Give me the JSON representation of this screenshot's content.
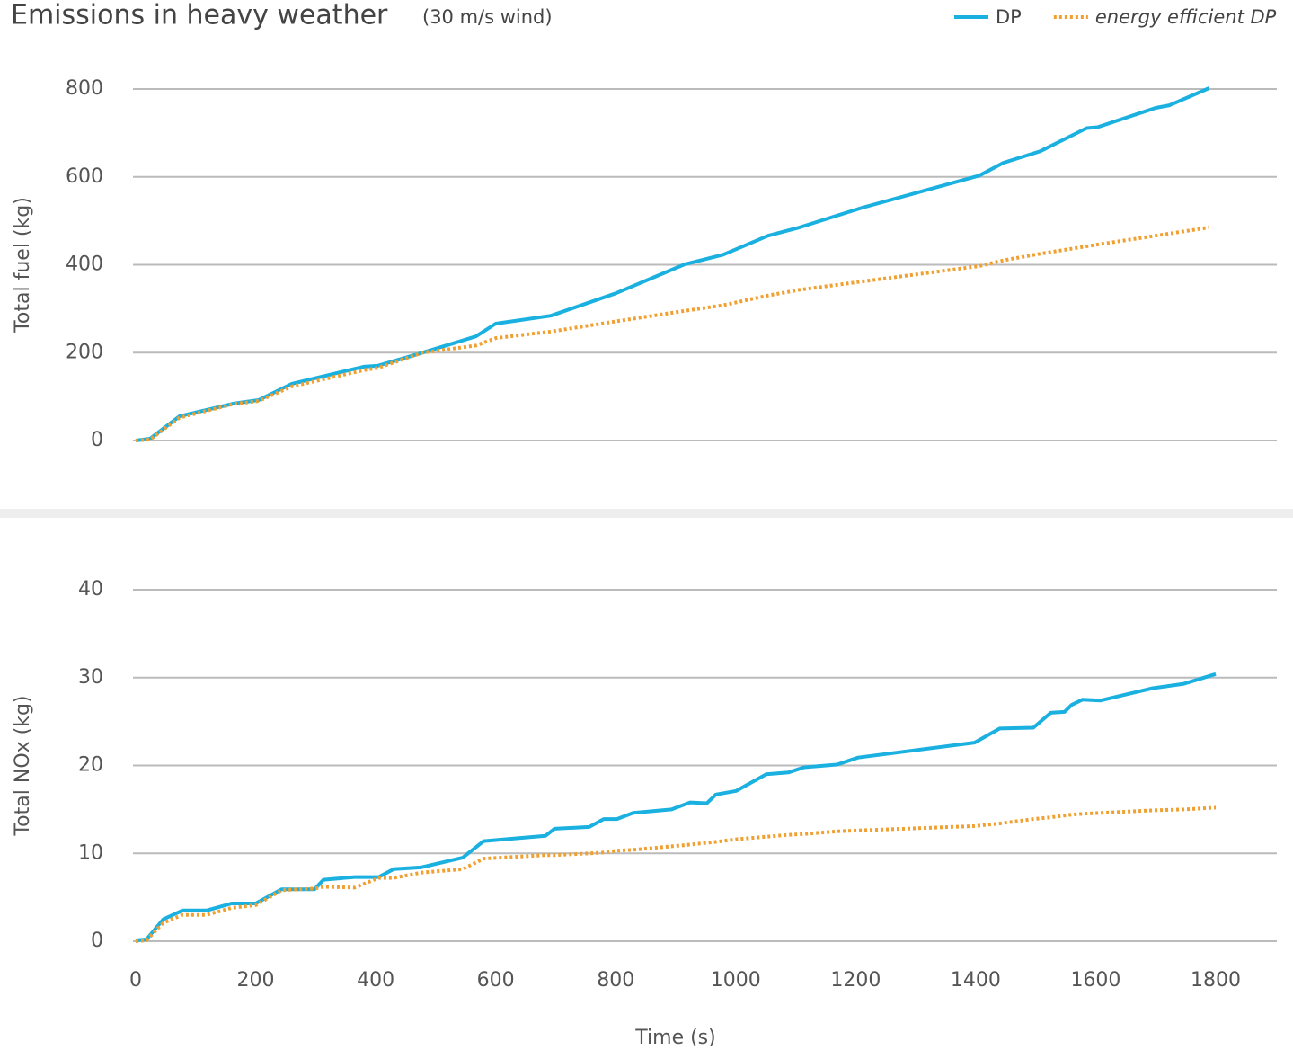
{
  "chart_data": [
    {
      "type": "line",
      "title": "Emissions in heavy weather",
      "subtitle": "(30 m/s wind)",
      "ylabel": "Total fuel  (kg)",
      "x": [
        0,
        24,
        73,
        163,
        205,
        260,
        380,
        403,
        478,
        567,
        600,
        692,
        800,
        915,
        979,
        1054,
        1106,
        1211,
        1406,
        1446,
        1507,
        1585,
        1603,
        1700,
        1723,
        1789
      ],
      "series": [
        {
          "name": "DP",
          "color": "#1ab0e0",
          "style": "solid",
          "values": [
            0,
            4,
            55,
            84,
            92,
            129,
            168,
            170,
            200,
            237,
            266,
            284,
            335,
            401,
            423,
            466,
            485,
            530,
            603,
            632,
            658,
            711,
            713,
            757,
            763,
            802
          ]
        },
        {
          "name": "energy efficient DP",
          "color": "#f0a030",
          "style": "dotted",
          "values": [
            0,
            2,
            52,
            83,
            90,
            123,
            160,
            165,
            200,
            216,
            233,
            248,
            271,
            295,
            308,
            330,
            343,
            362,
            397,
            410,
            425,
            442,
            446,
            466,
            471,
            485
          ]
        }
      ],
      "xlim": [
        0,
        1800
      ],
      "ylim": [
        0,
        800
      ],
      "yticks": [
        0,
        200,
        400,
        600,
        800
      ],
      "grid": true,
      "legend": "top-right"
    },
    {
      "type": "line",
      "ylabel": "Total NOx  (kg)",
      "xlabel": "Time (s)",
      "x": [
        0,
        18,
        46,
        78,
        118,
        160,
        200,
        243,
        298,
        313,
        365,
        405,
        430,
        475,
        545,
        580,
        683,
        698,
        756,
        780,
        802,
        829,
        893,
        924,
        952,
        967,
        1001,
        1051,
        1088,
        1114,
        1169,
        1204,
        1398,
        1440,
        1496,
        1525,
        1548,
        1560,
        1578,
        1608,
        1695,
        1747,
        1800
      ],
      "series": [
        {
          "color": "#1ab0e0",
          "style": "solid",
          "values": [
            0.1,
            0.2,
            2.5,
            3.5,
            3.5,
            4.3,
            4.3,
            5.9,
            5.9,
            7.0,
            7.3,
            7.3,
            8.2,
            8.4,
            9.5,
            11.4,
            12.0,
            12.8,
            13.0,
            13.9,
            13.9,
            14.6,
            15.0,
            15.8,
            15.7,
            16.7,
            17.1,
            19.0,
            19.2,
            19.8,
            20.1,
            20.9,
            22.6,
            24.2,
            24.3,
            26.0,
            26.1,
            26.9,
            27.5,
            27.4,
            28.8,
            29.3,
            30.4
          ]
        },
        {
          "color": "#f0a030",
          "style": "dotted",
          "values": [
            0,
            0.1,
            2.1,
            3,
            3,
            3.8,
            4.1,
            5.8,
            6.0,
            6.2,
            6.1,
            7.2,
            7.2,
            7.8,
            8.2,
            9.4,
            9.8,
            9.8,
            10,
            10.1,
            10.3,
            10.4,
            10.8,
            11,
            11.2,
            11.3,
            11.6,
            11.9,
            12.1,
            12.2,
            12.5,
            12.6,
            13.1,
            13.4,
            13.9,
            14.1,
            14.3,
            14.4,
            14.5,
            14.6,
            14.9,
            15.0,
            15.2
          ]
        }
      ],
      "xlim": [
        0,
        1800
      ],
      "xticks": [
        0,
        200,
        400,
        600,
        800,
        1000,
        1200,
        1400,
        1600,
        1800
      ],
      "ylim": [
        0,
        40
      ],
      "yticks": [
        0,
        10,
        20,
        30,
        40
      ],
      "grid": true
    }
  ]
}
